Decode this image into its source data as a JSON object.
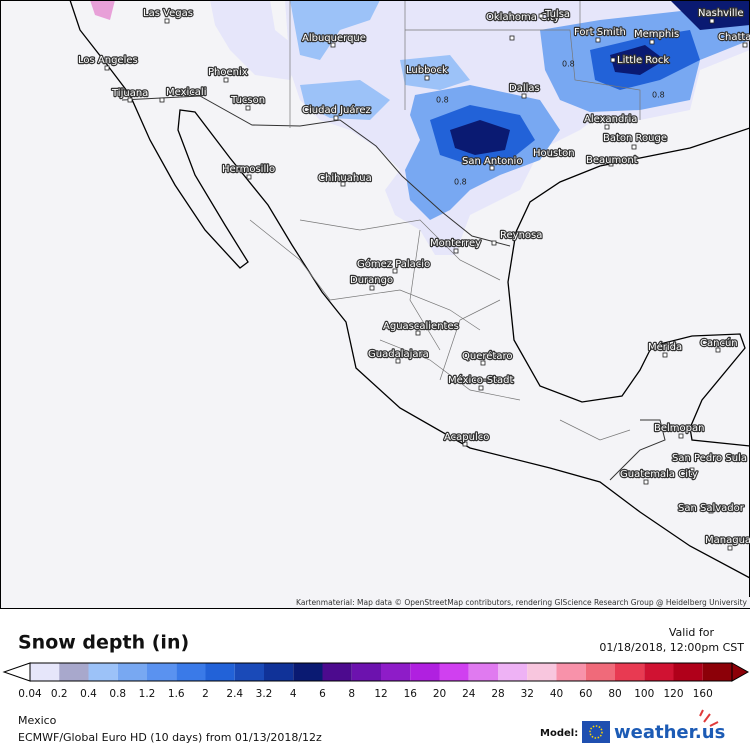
{
  "map": {
    "cities": [
      "Las Vegas",
      "Oklahoma City",
      "Tulsa",
      "Nashville",
      "Albuquerque",
      "Fort Smith",
      "Memphis",
      "Chatta",
      "Los Angeles",
      "Little Rock",
      "Lubbock",
      "Phoenix",
      "Tijuana",
      "Mexicali",
      "Dallas",
      "Tucson",
      "Ciudad Juárez",
      "Alexandria",
      "Baton Rouge",
      "Houston",
      "San Antonio",
      "Beaumont",
      "Hermosillo",
      "Chihuahua",
      "Reynosa",
      "Monterrey",
      "Gómez Palacio",
      "Durango",
      "Aguascalientes",
      "Mérida",
      "Cancún",
      "Guadalajara",
      "Querétaro",
      "México-Stadt",
      "Acapulco",
      "Belmopan",
      "San Pedro Sula",
      "Guatemala City",
      "San Salvador",
      "Managua"
    ],
    "contour_labels": [
      "0.8",
      "0.8",
      "0.8",
      "0.8"
    ],
    "attribution": "Kartenmaterial: Map data © OpenStreetMap contributors, rendering GIScience Research Group @ Heidelberg University"
  },
  "legend": {
    "title": "Snow depth (in)",
    "valid_label": "Valid for",
    "valid_time": "01/18/2018, 12:00pm CST",
    "items": [
      {
        "value": 0.04,
        "color": "#e6e6fa"
      },
      {
        "value": 0.2,
        "color": "#a8a8cc"
      },
      {
        "value": 0.4,
        "color": "#9cc2f8"
      },
      {
        "value": 0.8,
        "color": "#78a8f2"
      },
      {
        "value": 1.2,
        "color": "#5a92f0"
      },
      {
        "value": 1.6,
        "color": "#3a7ae8"
      },
      {
        "value": 2,
        "color": "#2262d8"
      },
      {
        "value": 2.4,
        "color": "#1a4ab8"
      },
      {
        "value": 3.2,
        "color": "#103298"
      },
      {
        "value": 4,
        "color": "#0a1a72"
      },
      {
        "value": 6,
        "color": "#4c0a8e"
      },
      {
        "value": 8,
        "color": "#6c12ae"
      },
      {
        "value": 12,
        "color": "#8e1cc8"
      },
      {
        "value": 16,
        "color": "#b020e0"
      },
      {
        "value": 20,
        "color": "#d040f0"
      },
      {
        "value": 24,
        "color": "#e07af0"
      },
      {
        "value": 28,
        "color": "#eeb2f5"
      },
      {
        "value": 32,
        "color": "#f8c6de"
      },
      {
        "value": 40,
        "color": "#f892aa"
      },
      {
        "value": 60,
        "color": "#f06a7a"
      },
      {
        "value": 80,
        "color": "#e83a52"
      },
      {
        "value": 100,
        "color": "#d01232"
      },
      {
        "value": 120,
        "color": "#b0001a"
      },
      {
        "value": 160,
        "color": "#8c0008"
      }
    ]
  },
  "footer": {
    "region": "Mexico",
    "model_run": "ECMWF/Global Euro HD (10 days) from 01/13/2018/12z",
    "model_label": "Model:",
    "brand": "weather.us"
  }
}
